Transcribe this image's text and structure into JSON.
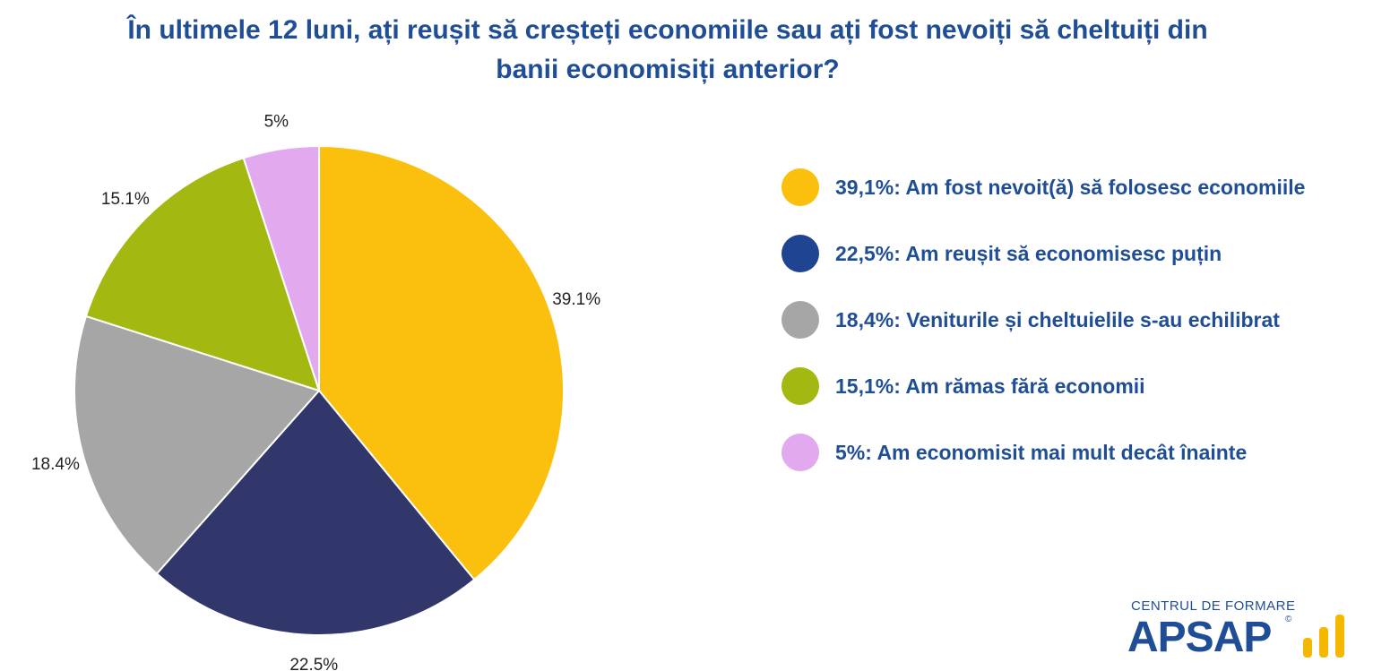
{
  "title_line1": "În ultimele 12 luni, ați reușit să creșteți economiile sau ați fost nevoiți să cheltuiți din",
  "title_line2": "banii economisiți anterior?",
  "chart_data": {
    "type": "pie",
    "title": "În ultimele 12 luni, ați reușit să creșteți economiile sau ați fost nevoiți să cheltuiți din banii economisiți anterior?",
    "slices": [
      {
        "name": "Am fost nevoit(ă) să folosesc economiile",
        "value": 39.1,
        "label": "39.1%",
        "legend": "39,1%: Am fost nevoit(ă) să folosesc economiile",
        "color": "#fbbf0e"
      },
      {
        "name": "Am reușit să economisesc puțin",
        "value": 22.5,
        "label": "22.5%",
        "legend": "22,5%: Am reușit să economisesc puțin",
        "color": "#31366b"
      },
      {
        "name": "Veniturile și cheltuielile s-au echilibrat",
        "value": 18.4,
        "label": "18.4%",
        "legend": "18,4%: Veniturile și cheltuielile s-au echilibrat",
        "color": "#a6a6a6"
      },
      {
        "name": "Am rămas fără economii",
        "value": 15.1,
        "label": "15.1%",
        "legend": "15,1%: Am rămas fără economii",
        "color": "#a3b810"
      },
      {
        "name": "Am economisit mai mult decât înainte",
        "value": 5,
        "label": "5%",
        "legend": "5%: Am economisit mai mult decât înainte",
        "color": "#e2a9ef"
      }
    ],
    "start_angle": "12 o'clock",
    "direction": "clockwise",
    "legend_placement": "right"
  },
  "legend_dot_colors": [
    "#fbbf0e",
    "#1f4592",
    "#a6a6a6",
    "#a3b810",
    "#e2a9ef"
  ],
  "logo": {
    "small": "CENTRUL DE FORMARE",
    "big": "APSAP",
    "mark": "©"
  }
}
